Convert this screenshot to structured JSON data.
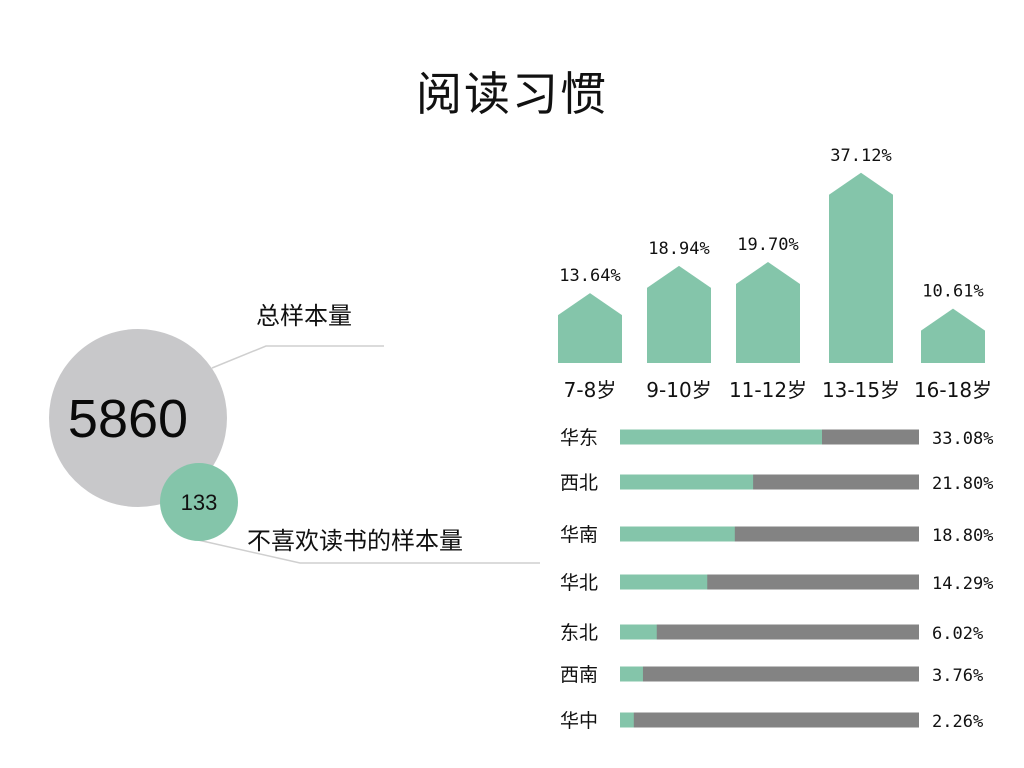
{
  "title": "阅读习惯",
  "colors": {
    "accent": "#84c5aa",
    "remainder": "#838383",
    "circle": "#c8c8ca",
    "line": "#cfcfcf"
  },
  "summary": {
    "total_label": "总样本量",
    "total_value": "5860",
    "dislike_label": "不喜欢读书的样本量",
    "dislike_value": "133"
  },
  "chart_data": [
    {
      "type": "bar",
      "categories": [
        "7-8岁",
        "9-10岁",
        "11-12岁",
        "13-15岁",
        "16-18岁"
      ],
      "values": [
        13.64,
        18.94,
        19.7,
        37.12,
        10.61
      ],
      "value_labels": [
        "13.64%",
        "18.94%",
        "19.70%",
        "37.12%",
        "10.61%"
      ],
      "ylim": [
        0,
        40
      ]
    },
    {
      "type": "bar",
      "orientation": "horizontal",
      "stacked": true,
      "categories": [
        "华东",
        "西北",
        "华南",
        "华北",
        "东北",
        "西南",
        "华中"
      ],
      "values": [
        33.08,
        21.8,
        18.8,
        14.29,
        6.02,
        3.76,
        2.26
      ],
      "value_labels": [
        "33.08%",
        "21.80%",
        "18.80%",
        "14.29%",
        "6.02%",
        "3.76%",
        "2.26%"
      ],
      "xlim": [
        0,
        50
      ]
    }
  ]
}
